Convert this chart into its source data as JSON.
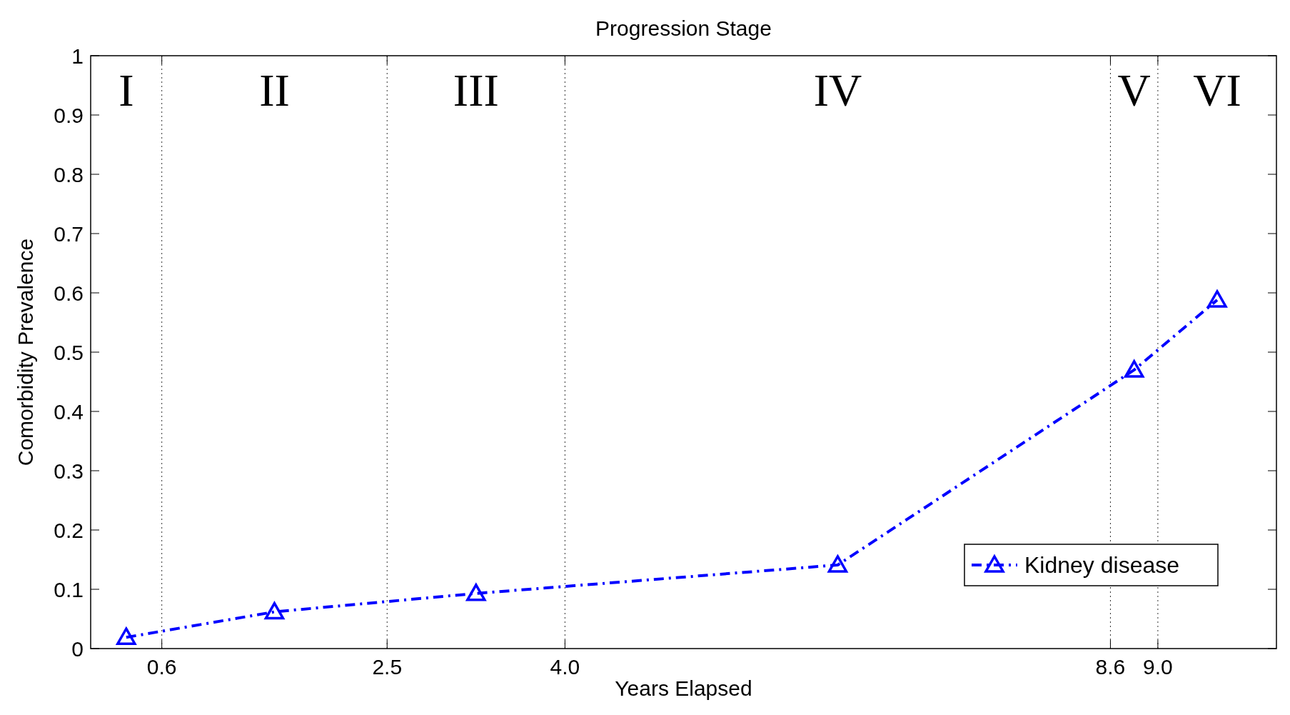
{
  "chart_data": {
    "type": "line",
    "title": "Progression Stage",
    "xlabel": "Years Elapsed",
    "ylabel": "Comorbidity Prevalence",
    "x": [
      0.3,
      1.55,
      3.25,
      6.3,
      8.8,
      9.5
    ],
    "series": [
      {
        "name": "Kidney disease",
        "color": "#0000ff",
        "values": [
          0.019,
          0.062,
          0.093,
          0.141,
          0.47,
          0.588
        ]
      }
    ],
    "xlim": [
      0,
      10
    ],
    "xticks": [
      0.6,
      2.5,
      {
        "value": 4,
        "label": "4.0"
      },
      8.6,
      {
        "value": 9,
        "label": "9.0"
      }
    ],
    "ylim": [
      0,
      1
    ],
    "yticks": [
      0,
      0.1,
      0.2,
      0.3,
      0.4,
      0.5,
      0.6,
      0.7,
      0.8,
      0.9,
      1
    ],
    "grid": "x",
    "legend": "bottom right",
    "marker": "triangle",
    "line_style": "dashed",
    "annotations": [
      "I",
      "II",
      "III",
      "IV",
      "V",
      "VI"
    ]
  }
}
